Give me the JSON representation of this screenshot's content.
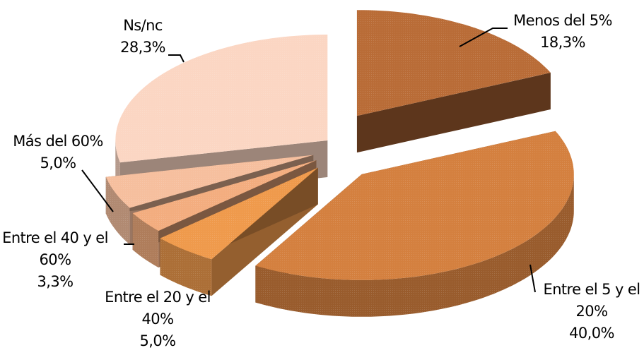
{
  "chart_data": {
    "type": "pie",
    "variant": "3d-exploded",
    "start": "top, clockwise",
    "slices": [
      {
        "label": "Menos del 5%",
        "lines": [
          "Menos del 5%",
          "18,3%"
        ],
        "value": 18.3,
        "value_label": "18,3%",
        "color": "#b96c37"
      },
      {
        "label": "Entre el 5 y el 20%",
        "lines": [
          "Entre el 5 y el",
          "20%",
          "40,0%"
        ],
        "value": 40.0,
        "value_label": "40,0%",
        "color": "#d4803f"
      },
      {
        "label": "Entre el 20 y el 40%",
        "lines": [
          "Entre el 20 y el",
          "40%",
          "5,0%"
        ],
        "value": 5.0,
        "value_label": "5,0%",
        "color": "#ef9a4c"
      },
      {
        "label": "Entre el 40 y el 60%",
        "lines": [
          "Entre el 40 y el",
          "60%",
          "3,3%"
        ],
        "value": 3.3,
        "value_label": "3,3%",
        "color": "#f3ad7f"
      },
      {
        "label": "Más del 60%",
        "lines": [
          "Más del 60%",
          "5,0%"
        ],
        "value": 5.0,
        "value_label": "5,0%",
        "color": "#f6bf9e"
      },
      {
        "label": "Ns/nc",
        "lines": [
          "Ns/nc",
          "28,3%"
        ],
        "value": 28.3,
        "value_label": "28,3%",
        "color": "#fbd6c3"
      }
    ]
  }
}
